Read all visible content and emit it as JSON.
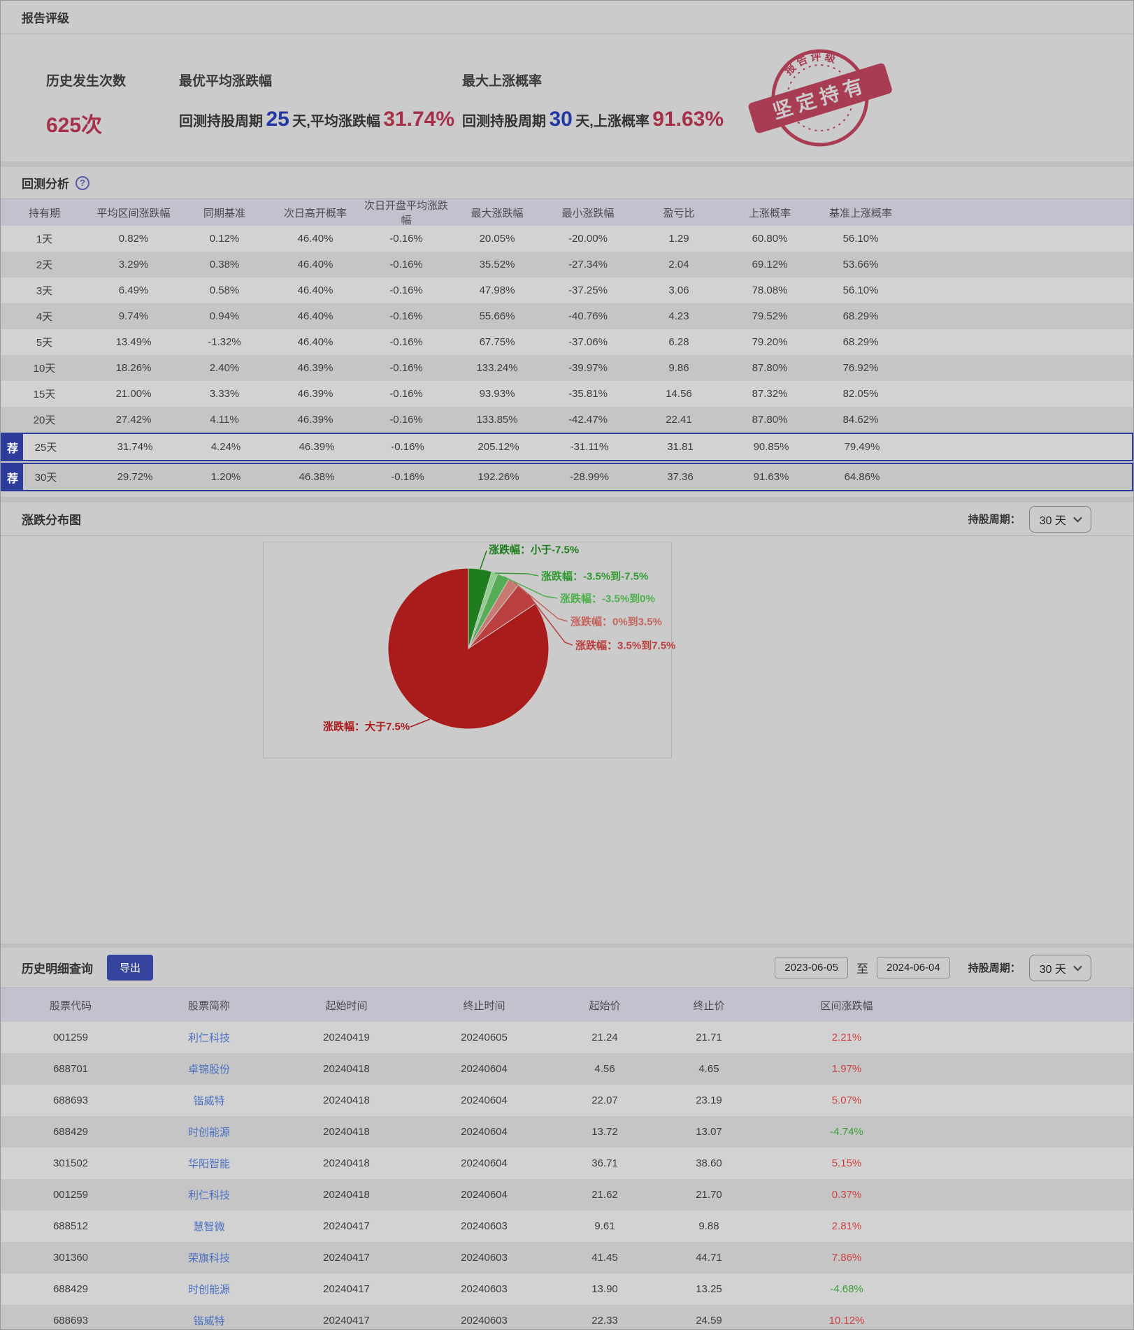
{
  "rating": {
    "title": "报告评级",
    "stats": [
      {
        "label": "历史发生次数",
        "value": "625次"
      },
      {
        "label": "最优平均涨跌幅",
        "prefix": "回测持股周期",
        "num": "25",
        "mid": "天,平均涨跌幅",
        "pct": "31.74%"
      },
      {
        "label": "最大上涨概率",
        "prefix": "回测持股周期",
        "num": "30",
        "mid": "天,上涨概率",
        "pct": "91.63%"
      }
    ],
    "stamp": {
      "arc_text": "报告评级",
      "banner_text": "坚定持有"
    }
  },
  "backtest": {
    "title": "回测分析",
    "help_icon": "?",
    "recommend_badge": "荐",
    "columns": [
      "持有期",
      "平均区间涨跌幅",
      "同期基准",
      "次日高开概率",
      "次日开盘平均涨跌幅",
      "最大涨跌幅",
      "最小涨跌幅",
      "盈亏比",
      "上涨概率",
      "基准上涨概率"
    ],
    "rows": [
      {
        "recommended": false,
        "cells": [
          "1天",
          "0.82%",
          "0.12%",
          "46.40%",
          "-0.16%",
          "20.05%",
          "-20.00%",
          "1.29",
          "60.80%",
          "56.10%"
        ]
      },
      {
        "recommended": false,
        "cells": [
          "2天",
          "3.29%",
          "0.38%",
          "46.40%",
          "-0.16%",
          "35.52%",
          "-27.34%",
          "2.04",
          "69.12%",
          "53.66%"
        ]
      },
      {
        "recommended": false,
        "cells": [
          "3天",
          "6.49%",
          "0.58%",
          "46.40%",
          "-0.16%",
          "47.98%",
          "-37.25%",
          "3.06",
          "78.08%",
          "56.10%"
        ]
      },
      {
        "recommended": false,
        "cells": [
          "4天",
          "9.74%",
          "0.94%",
          "46.40%",
          "-0.16%",
          "55.66%",
          "-40.76%",
          "4.23",
          "79.52%",
          "68.29%"
        ]
      },
      {
        "recommended": false,
        "cells": [
          "5天",
          "13.49%",
          "-1.32%",
          "46.40%",
          "-0.16%",
          "67.75%",
          "-37.06%",
          "6.28",
          "79.20%",
          "68.29%"
        ]
      },
      {
        "recommended": false,
        "cells": [
          "10天",
          "18.26%",
          "2.40%",
          "46.39%",
          "-0.16%",
          "133.24%",
          "-39.97%",
          "9.86",
          "87.80%",
          "76.92%"
        ]
      },
      {
        "recommended": false,
        "cells": [
          "15天",
          "21.00%",
          "3.33%",
          "46.39%",
          "-0.16%",
          "93.93%",
          "-35.81%",
          "14.56",
          "87.32%",
          "82.05%"
        ]
      },
      {
        "recommended": false,
        "cells": [
          "20天",
          "27.42%",
          "4.11%",
          "46.39%",
          "-0.16%",
          "133.85%",
          "-42.47%",
          "22.41",
          "87.80%",
          "84.62%"
        ]
      },
      {
        "recommended": true,
        "cells": [
          "25天",
          "31.74%",
          "4.24%",
          "46.39%",
          "-0.16%",
          "205.12%",
          "-31.11%",
          "31.81",
          "90.85%",
          "79.49%"
        ]
      },
      {
        "recommended": true,
        "cells": [
          "30天",
          "29.72%",
          "1.20%",
          "46.38%",
          "-0.16%",
          "192.26%",
          "-28.99%",
          "37.36",
          "91.63%",
          "64.86%"
        ]
      }
    ]
  },
  "distribution": {
    "title": "涨跌分布图",
    "period_label": "持股周期：",
    "period_value": "30 天"
  },
  "chart_data": {
    "type": "pie",
    "title": "涨跌分布图",
    "categories": [
      "涨跌幅：小于-7.5%",
      "涨跌幅：-3.5%到-7.5%",
      "涨跌幅：-3.5%到0%",
      "涨跌幅：0%到3.5%",
      "涨跌幅：3.5%到7.5%",
      "涨跌幅：大于7.5%"
    ],
    "values": [
      4.7,
      1.2,
      2.5,
      2.2,
      5.0,
      84.4
    ],
    "unit": "percent of 30-day backtest outcomes",
    "colors": [
      "#1e7e1e",
      "#8fce8f",
      "#55ae55",
      "#c87a72",
      "#bc3f3f",
      "#aa1c1c"
    ],
    "legend_position": "callout-labels"
  },
  "history": {
    "title": "历史明细查询",
    "export_label": "导出",
    "date_from": "2023-06-05",
    "to_label": "至",
    "date_to": "2024-06-04",
    "period_label": "持股周期：",
    "period_value": "30 天",
    "columns": [
      "股票代码",
      "股票简称",
      "起始时间",
      "终止时间",
      "起始价",
      "终止价",
      "区间涨跌幅"
    ],
    "rows": [
      [
        "001259",
        "利仁科技",
        "20240419",
        "20240605",
        "21.24",
        "21.71",
        "2.21%"
      ],
      [
        "688701",
        "卓锦股份",
        "20240418",
        "20240604",
        "4.56",
        "4.65",
        "1.97%"
      ],
      [
        "688693",
        "锴威特",
        "20240418",
        "20240604",
        "22.07",
        "23.19",
        "5.07%"
      ],
      [
        "688429",
        "时创能源",
        "20240418",
        "20240604",
        "13.72",
        "13.07",
        "-4.74%"
      ],
      [
        "301502",
        "华阳智能",
        "20240418",
        "20240604",
        "36.71",
        "38.60",
        "5.15%"
      ],
      [
        "001259",
        "利仁科技",
        "20240418",
        "20240604",
        "21.62",
        "21.70",
        "0.37%"
      ],
      [
        "688512",
        "慧智微",
        "20240417",
        "20240603",
        "9.61",
        "9.88",
        "2.81%"
      ],
      [
        "301360",
        "荣旗科技",
        "20240417",
        "20240603",
        "41.45",
        "44.71",
        "7.86%"
      ],
      [
        "688429",
        "时创能源",
        "20240417",
        "20240603",
        "13.90",
        "13.25",
        "-4.68%"
      ],
      [
        "688693",
        "锴威特",
        "20240417",
        "20240603",
        "22.33",
        "24.59",
        "10.12%"
      ]
    ]
  }
}
